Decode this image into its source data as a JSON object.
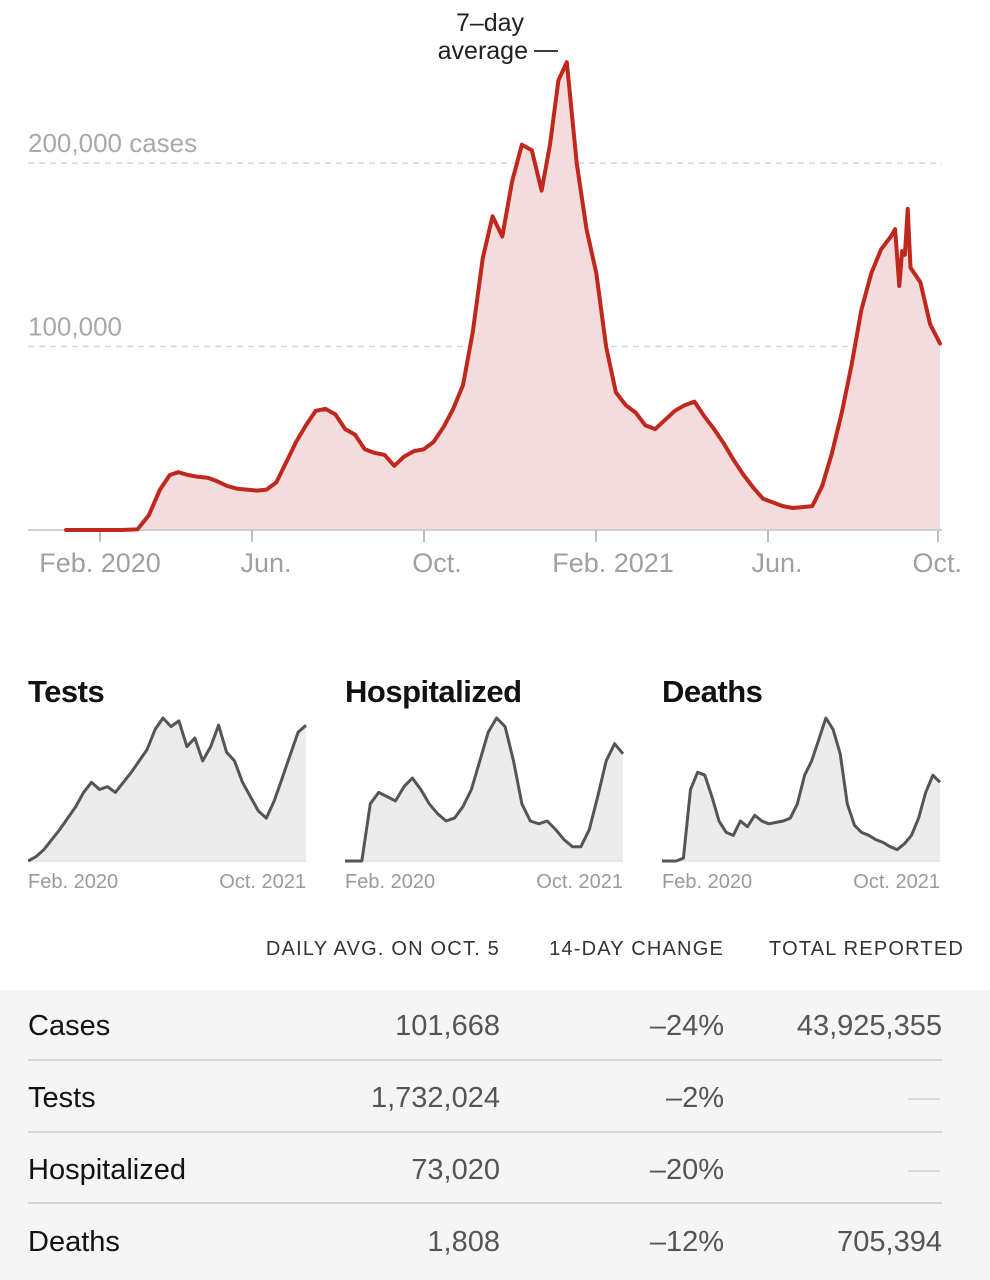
{
  "chart_data": {
    "type": "area",
    "annotation": "7–day average",
    "y_ticks": [
      {
        "value": 200000,
        "label": "200,000 cases"
      },
      {
        "value": 100000,
        "label": "100,000"
      }
    ],
    "x_ticks": [
      "Feb. 2020",
      "Jun.",
      "Oct.",
      "Feb. 2021",
      "Jun.",
      "Oct."
    ],
    "xlim": [
      "2020-01-21",
      "2021-10-05"
    ],
    "ylim": [
      0,
      260000
    ],
    "grid": true,
    "colors": {
      "line": "#c0281e",
      "fill": "#f5dcdc"
    },
    "series": [
      {
        "points": [
          [
            "2020-01-21",
            0
          ],
          [
            "2020-03-01",
            0
          ],
          [
            "2020-03-12",
            300
          ],
          [
            "2020-03-20",
            8000
          ],
          [
            "2020-03-28",
            22000
          ],
          [
            "2020-04-04",
            30000
          ],
          [
            "2020-04-10",
            31500
          ],
          [
            "2020-04-17",
            30000
          ],
          [
            "2020-04-24",
            29000
          ],
          [
            "2020-05-01",
            28500
          ],
          [
            "2020-05-08",
            26500
          ],
          [
            "2020-05-15",
            24000
          ],
          [
            "2020-05-22",
            22500
          ],
          [
            "2020-05-29",
            22000
          ],
          [
            "2020-06-05",
            21500
          ],
          [
            "2020-06-12",
            22000
          ],
          [
            "2020-06-19",
            26000
          ],
          [
            "2020-06-26",
            37000
          ],
          [
            "2020-07-03",
            48000
          ],
          [
            "2020-07-10",
            57000
          ],
          [
            "2020-07-17",
            65000
          ],
          [
            "2020-07-24",
            66000
          ],
          [
            "2020-07-31",
            63000
          ],
          [
            "2020-08-07",
            55000
          ],
          [
            "2020-08-14",
            52000
          ],
          [
            "2020-08-21",
            44000
          ],
          [
            "2020-08-28",
            42000
          ],
          [
            "2020-09-04",
            41000
          ],
          [
            "2020-09-11",
            35000
          ],
          [
            "2020-09-18",
            40000
          ],
          [
            "2020-09-25",
            43000
          ],
          [
            "2020-10-02",
            44000
          ],
          [
            "2020-10-09",
            48000
          ],
          [
            "2020-10-16",
            56000
          ],
          [
            "2020-10-23",
            66000
          ],
          [
            "2020-10-30",
            79000
          ],
          [
            "2020-11-06",
            108000
          ],
          [
            "2020-11-13",
            148000
          ],
          [
            "2020-11-20",
            171000
          ],
          [
            "2020-11-27",
            160000
          ],
          [
            "2020-12-04",
            190000
          ],
          [
            "2020-12-11",
            210000
          ],
          [
            "2020-12-18",
            207000
          ],
          [
            "2020-12-25",
            185000
          ],
          [
            "2020-12-31",
            210000
          ],
          [
            "2021-01-06",
            245000
          ],
          [
            "2021-01-12",
            255000
          ],
          [
            "2021-01-19",
            200000
          ],
          [
            "2021-01-26",
            164000
          ],
          [
            "2021-02-02",
            140000
          ],
          [
            "2021-02-09",
            100000
          ],
          [
            "2021-02-16",
            75000
          ],
          [
            "2021-02-23",
            68000
          ],
          [
            "2021-03-02",
            64000
          ],
          [
            "2021-03-09",
            57000
          ],
          [
            "2021-03-16",
            55000
          ],
          [
            "2021-03-23",
            60000
          ],
          [
            "2021-03-30",
            65000
          ],
          [
            "2021-04-06",
            68000
          ],
          [
            "2021-04-13",
            70000
          ],
          [
            "2021-04-20",
            62000
          ],
          [
            "2021-04-27",
            55000
          ],
          [
            "2021-05-04",
            47000
          ],
          [
            "2021-05-11",
            38000
          ],
          [
            "2021-05-18",
            30000
          ],
          [
            "2021-05-25",
            23000
          ],
          [
            "2021-06-01",
            17000
          ],
          [
            "2021-06-08",
            15000
          ],
          [
            "2021-06-15",
            13000
          ],
          [
            "2021-06-22",
            12000
          ],
          [
            "2021-06-29",
            12500
          ],
          [
            "2021-07-06",
            13000
          ],
          [
            "2021-07-13",
            24000
          ],
          [
            "2021-07-20",
            42000
          ],
          [
            "2021-07-27",
            64000
          ],
          [
            "2021-08-03",
            90000
          ],
          [
            "2021-08-10",
            120000
          ],
          [
            "2021-08-17",
            140000
          ],
          [
            "2021-08-24",
            153000
          ],
          [
            "2021-08-31",
            160000
          ],
          [
            "2021-09-03",
            164000
          ],
          [
            "2021-09-06",
            133000
          ],
          [
            "2021-09-08",
            152000
          ],
          [
            "2021-09-10",
            150000
          ],
          [
            "2021-09-12",
            175000
          ],
          [
            "2021-09-14",
            143000
          ],
          [
            "2021-09-21",
            135000
          ],
          [
            "2021-09-28",
            112000
          ],
          [
            "2021-10-05",
            101668
          ]
        ]
      }
    ]
  },
  "small_charts": [
    {
      "title": "Tests",
      "x_start": "Feb. 2020",
      "x_end": "Oct. 2021",
      "values": [
        0,
        3,
        8,
        15,
        22,
        30,
        38,
        48,
        55,
        50,
        52,
        48,
        55,
        62,
        70,
        78,
        92,
        100,
        94,
        98,
        80,
        86,
        70,
        80,
        95,
        76,
        70,
        55,
        45,
        35,
        30,
        42,
        58,
        74,
        90,
        95
      ]
    },
    {
      "title": "Hospitalized",
      "x_start": "Feb. 2020",
      "x_end": "Oct. 2021",
      "values": [
        0,
        0,
        0,
        40,
        48,
        45,
        42,
        52,
        58,
        50,
        40,
        33,
        28,
        30,
        38,
        50,
        70,
        90,
        100,
        94,
        70,
        40,
        28,
        26,
        28,
        22,
        15,
        10,
        10,
        22,
        45,
        70,
        82,
        75
      ]
    },
    {
      "title": "Deaths",
      "x_start": "Feb. 2020",
      "x_end": "Oct. 2021",
      "values": [
        0,
        0,
        0,
        2,
        50,
        62,
        60,
        45,
        28,
        20,
        18,
        28,
        24,
        32,
        28,
        26,
        27,
        28,
        30,
        40,
        60,
        70,
        85,
        100,
        92,
        75,
        40,
        25,
        20,
        18,
        15,
        13,
        10,
        8,
        12,
        18,
        30,
        48,
        60,
        55
      ]
    }
  ],
  "table": {
    "headers": {
      "avg": "DAILY AVG. ON OCT. 5",
      "change": "14-DAY CHANGE",
      "total": "TOTAL REPORTED"
    },
    "rows": [
      {
        "name": "Cases",
        "avg": "101,668",
        "change": "–24%",
        "total": "43,925,355"
      },
      {
        "name": "Tests",
        "avg": "1,732,024",
        "change": "–2%",
        "total": ""
      },
      {
        "name": "Hospitalized",
        "avg": "73,020",
        "change": "–20%",
        "total": ""
      },
      {
        "name": "Deaths",
        "avg": "1,808",
        "change": "–12%",
        "total": "705,394"
      }
    ]
  }
}
